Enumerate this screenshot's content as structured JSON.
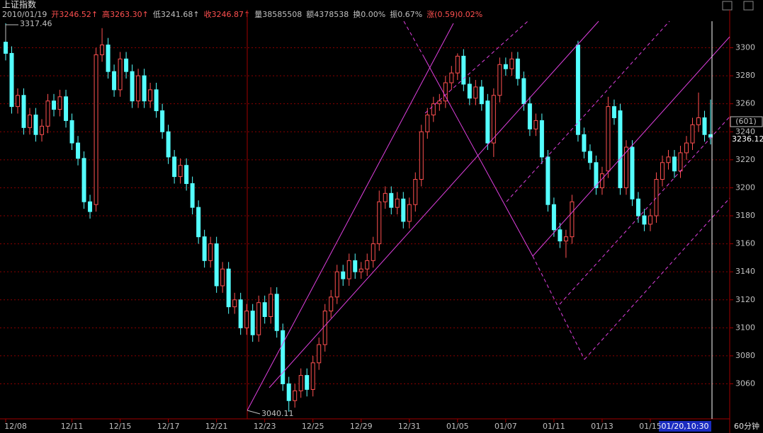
{
  "header": {
    "title": "上证指数",
    "items": [
      {
        "text": "2010/01/19",
        "color": "#c0c0c0"
      },
      {
        "text": "开3246.52↑",
        "color": "#ff5050"
      },
      {
        "text": "高3263.30↑",
        "color": "#ff5050"
      },
      {
        "text": "低3241.68↑",
        "color": "#c0c0c0"
      },
      {
        "text": "收3246.87↑",
        "color": "#ff5050"
      },
      {
        "text": "量38585508",
        "color": "#c0c0c0"
      },
      {
        "text": "额4378538",
        "color": "#c0c0c0"
      },
      {
        "text": "换0.00%",
        "color": "#c0c0c0"
      },
      {
        "text": "振0.67%",
        "color": "#c0c0c0"
      },
      {
        "text": "涨(0.59)0.02%",
        "color": "#ff5050"
      }
    ]
  },
  "chart_data": {
    "type": "candlestick",
    "up_color": "#ff5050",
    "down_color": "#54ffff",
    "grid": true,
    "ylim": [
      3036,
      3324
    ],
    "yticks": [
      3060,
      3080,
      3100,
      3120,
      3140,
      3160,
      3180,
      3200,
      3220,
      3240,
      3260,
      3280,
      3300
    ],
    "period_label": "60分钟",
    "cursor": {
      "count_label": "(601)",
      "value": 3236.12,
      "x_label": "01/20,10:30"
    },
    "categories": [
      "12/08",
      null,
      null,
      null,
      null,
      null,
      null,
      null,
      null,
      null,
      null,
      "12/11",
      null,
      null,
      null,
      null,
      null,
      null,
      null,
      "12/15",
      null,
      null,
      null,
      null,
      null,
      null,
      null,
      "12/17",
      null,
      null,
      null,
      null,
      null,
      null,
      null,
      "12/21",
      null,
      null,
      null,
      null,
      null,
      null,
      null,
      "12/23",
      null,
      null,
      null,
      null,
      null,
      null,
      null,
      "12/25",
      null,
      null,
      null,
      null,
      null,
      null,
      null,
      "12/29",
      null,
      null,
      null,
      null,
      null,
      null,
      null,
      "12/31",
      null,
      null,
      null,
      null,
      null,
      null,
      null,
      "01/05",
      null,
      null,
      null,
      null,
      null,
      null,
      null,
      "01/07",
      null,
      null,
      null,
      null,
      null,
      null,
      null,
      "01/11",
      null,
      null,
      null,
      null,
      null,
      null,
      null,
      "01/13",
      null,
      null,
      null,
      null,
      null,
      null,
      null,
      "01/15",
      null,
      null,
      null,
      null,
      null,
      null,
      null,
      null,
      null,
      null
    ],
    "open": [
      3304,
      3296,
      3258,
      3266,
      3243,
      3252,
      3238,
      3244,
      3262,
      3256,
      3265,
      3248,
      3232,
      3221,
      3190,
      3188,
      3295,
      3302,
      3283,
      3270,
      3292,
      3283,
      3262,
      3280,
      3262,
      3270,
      3255,
      3240,
      3222,
      3208,
      3216,
      3203,
      3186,
      3165,
      3148,
      3160,
      3130,
      3142,
      3115,
      3120,
      3100,
      3112,
      3095,
      3118,
      3108,
      3124,
      3098,
      3060,
      3048,
      3055,
      3066,
      3056,
      3075,
      3088,
      3112,
      3122,
      3140,
      3135,
      3148,
      3140,
      3142,
      3148,
      3160,
      3190,
      3196,
      3186,
      3192,
      3176,
      3188,
      3206,
      3240,
      3252,
      3260,
      3262,
      3275,
      3282,
      3294,
      3274,
      3264,
      3272,
      3262,
      3232,
      3266,
      3288,
      3285,
      3292,
      3278,
      3260,
      3242,
      3248,
      3222,
      3188,
      3170,
      3162,
      3165,
      3302,
      3238,
      3226,
      3218,
      3200,
      3212,
      3258,
      3255,
      3200,
      3229,
      3192,
      3180,
      3174,
      3180,
      3206,
      3218,
      3222,
      3212,
      3225,
      3232,
      3245,
      3250,
      3238
    ],
    "high": [
      3317.46,
      3301,
      3271,
      3271,
      3257,
      3257,
      3249,
      3267,
      3267,
      3270,
      3270,
      3253,
      3237,
      3226,
      3195,
      3300,
      3314,
      3307,
      3288,
      3297,
      3297,
      3288,
      3285,
      3285,
      3275,
      3275,
      3260,
      3245,
      3227,
      3221,
      3221,
      3208,
      3191,
      3170,
      3165,
      3165,
      3147,
      3147,
      3125,
      3125,
      3117,
      3117,
      3123,
      3123,
      3129,
      3129,
      3103,
      3065,
      3060,
      3071,
      3071,
      3080,
      3093,
      3117,
      3127,
      3145,
      3145,
      3153,
      3153,
      3147,
      3153,
      3165,
      3198,
      3201,
      3201,
      3197,
      3197,
      3193,
      3211,
      3245,
      3257,
      3265,
      3267,
      3280,
      3287,
      3296,
      3299,
      3279,
      3277,
      3277,
      3267,
      3271,
      3293,
      3293,
      3297,
      3297,
      3283,
      3265,
      3253,
      3253,
      3227,
      3193,
      3175,
      3170,
      3195,
      3305,
      3243,
      3231,
      3223,
      3215,
      3265,
      3263,
      3260,
      3234,
      3234,
      3197,
      3185,
      3185,
      3211,
      3223,
      3227,
      3227,
      3230,
      3237,
      3250,
      3268,
      3255,
      3263
    ],
    "low": [
      3291,
      3253,
      3253,
      3238,
      3238,
      3233,
      3233,
      3239,
      3251,
      3251,
      3243,
      3227,
      3216,
      3185,
      3178,
      3183,
      3290,
      3278,
      3265,
      3265,
      3278,
      3257,
      3257,
      3257,
      3257,
      3250,
      3235,
      3217,
      3203,
      3203,
      3198,
      3181,
      3160,
      3143,
      3143,
      3125,
      3125,
      3110,
      3110,
      3095,
      3095,
      3090,
      3090,
      3103,
      3103,
      3093,
      3055,
      3040.11,
      3043,
      3050,
      3051,
      3051,
      3070,
      3083,
      3107,
      3117,
      3130,
      3130,
      3135,
      3135,
      3137,
      3143,
      3155,
      3185,
      3181,
      3181,
      3171,
      3171,
      3183,
      3201,
      3235,
      3247,
      3255,
      3257,
      3270,
      3277,
      3269,
      3259,
      3259,
      3255,
      3227,
      3222,
      3261,
      3280,
      3280,
      3273,
      3255,
      3237,
      3237,
      3217,
      3183,
      3165,
      3157,
      3150,
      3160,
      3233,
      3221,
      3213,
      3195,
      3195,
      3207,
      3245,
      3195,
      3195,
      3187,
      3175,
      3169,
      3169,
      3175,
      3201,
      3213,
      3207,
      3207,
      3220,
      3227,
      3240,
      3233,
      3231
    ],
    "close": [
      3296,
      3258,
      3266,
      3243,
      3252,
      3238,
      3244,
      3262,
      3256,
      3265,
      3248,
      3232,
      3221,
      3190,
      3183,
      3295,
      3302,
      3283,
      3270,
      3292,
      3283,
      3262,
      3280,
      3262,
      3270,
      3255,
      3240,
      3222,
      3208,
      3216,
      3203,
      3186,
      3165,
      3148,
      3160,
      3130,
      3142,
      3115,
      3120,
      3100,
      3112,
      3095,
      3118,
      3108,
      3124,
      3098,
      3060,
      3048,
      3055,
      3066,
      3056,
      3075,
      3088,
      3112,
      3122,
      3140,
      3135,
      3148,
      3140,
      3142,
      3148,
      3160,
      3190,
      3196,
      3186,
      3192,
      3176,
      3188,
      3206,
      3240,
      3252,
      3260,
      3262,
      3275,
      3282,
      3294,
      3274,
      3264,
      3272,
      3260,
      3232,
      3266,
      3288,
      3285,
      3292,
      3278,
      3260,
      3242,
      3248,
      3222,
      3188,
      3170,
      3162,
      3165,
      3190,
      3238,
      3226,
      3218,
      3200,
      3210,
      3258,
      3250,
      3200,
      3229,
      3192,
      3180,
      3174,
      3180,
      3206,
      3218,
      3222,
      3212,
      3225,
      3232,
      3245,
      3250,
      3238,
      3236.12
    ]
  }
}
